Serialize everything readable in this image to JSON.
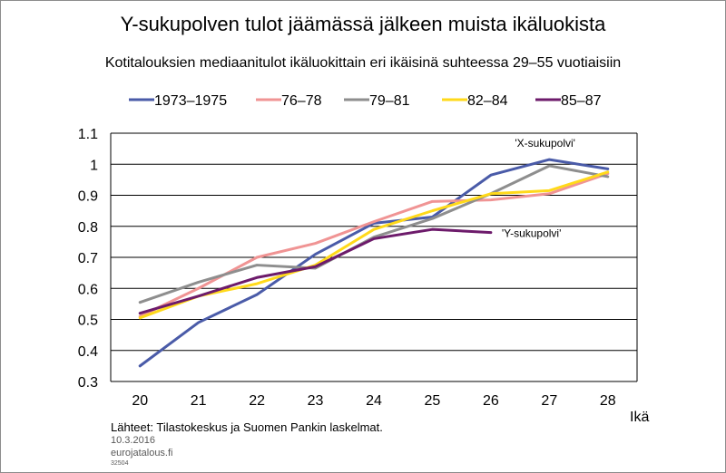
{
  "chart_data": {
    "type": "line",
    "title": "Y-sukupolven tulot jäämässä jälkeen muista ikäluokista",
    "subtitle": "Kotitalouksien mediaanitulot ikäluokittain eri ikäisinä suhteessa 29–55 vuotiaisiin",
    "xlabel": "Ikä",
    "ylabel": "",
    "categories": [
      "20",
      "21",
      "22",
      "23",
      "24",
      "25",
      "26",
      "27",
      "28"
    ],
    "ylim": [
      0.3,
      1.1
    ],
    "y_ticks": [
      0.3,
      0.4,
      0.5,
      0.6,
      0.7,
      0.8,
      0.9,
      1,
      1.1
    ],
    "y_tick_labels": [
      "0.3",
      "0.4",
      "0.5",
      "0.6",
      "0.7",
      "0.8",
      "0.9",
      "1",
      "1.1"
    ],
    "grid": true,
    "legend_position": "top",
    "series": [
      {
        "name": "1973–1975",
        "color": "#4a5ba8",
        "values": [
          0.35,
          0.49,
          0.58,
          0.71,
          0.81,
          0.83,
          0.965,
          1.015,
          0.985
        ]
      },
      {
        "name": "76–78",
        "color": "#f09494",
        "values": [
          0.51,
          0.6,
          0.7,
          0.745,
          0.815,
          0.88,
          0.885,
          0.905,
          0.97
        ]
      },
      {
        "name": "79–81",
        "color": "#8e8e8e",
        "values": [
          0.555,
          0.62,
          0.675,
          0.665,
          0.765,
          0.825,
          0.905,
          0.995,
          0.96
        ]
      },
      {
        "name": "82–84",
        "color": "#ffd91a",
        "values": [
          0.505,
          0.575,
          0.615,
          0.675,
          0.79,
          0.85,
          0.905,
          0.915,
          0.975
        ]
      },
      {
        "name": "85–87",
        "color": "#6d1b6b",
        "values": [
          0.52,
          0.575,
          0.635,
          0.67,
          0.76,
          0.79,
          0.78,
          null,
          null
        ]
      }
    ],
    "annotations": [
      {
        "text": "'X-sukupolvi'",
        "series": "1973–1975",
        "x": "27"
      },
      {
        "text": "'Y-sukupolvi'",
        "series": "85–87",
        "x": "26"
      }
    ]
  },
  "footer": {
    "source": "Lähteet: Tilastokeskus ja Suomen Pankin laskelmat.",
    "date": "10.3.2016",
    "site": "eurojatalous.fi",
    "code": "32504"
  }
}
